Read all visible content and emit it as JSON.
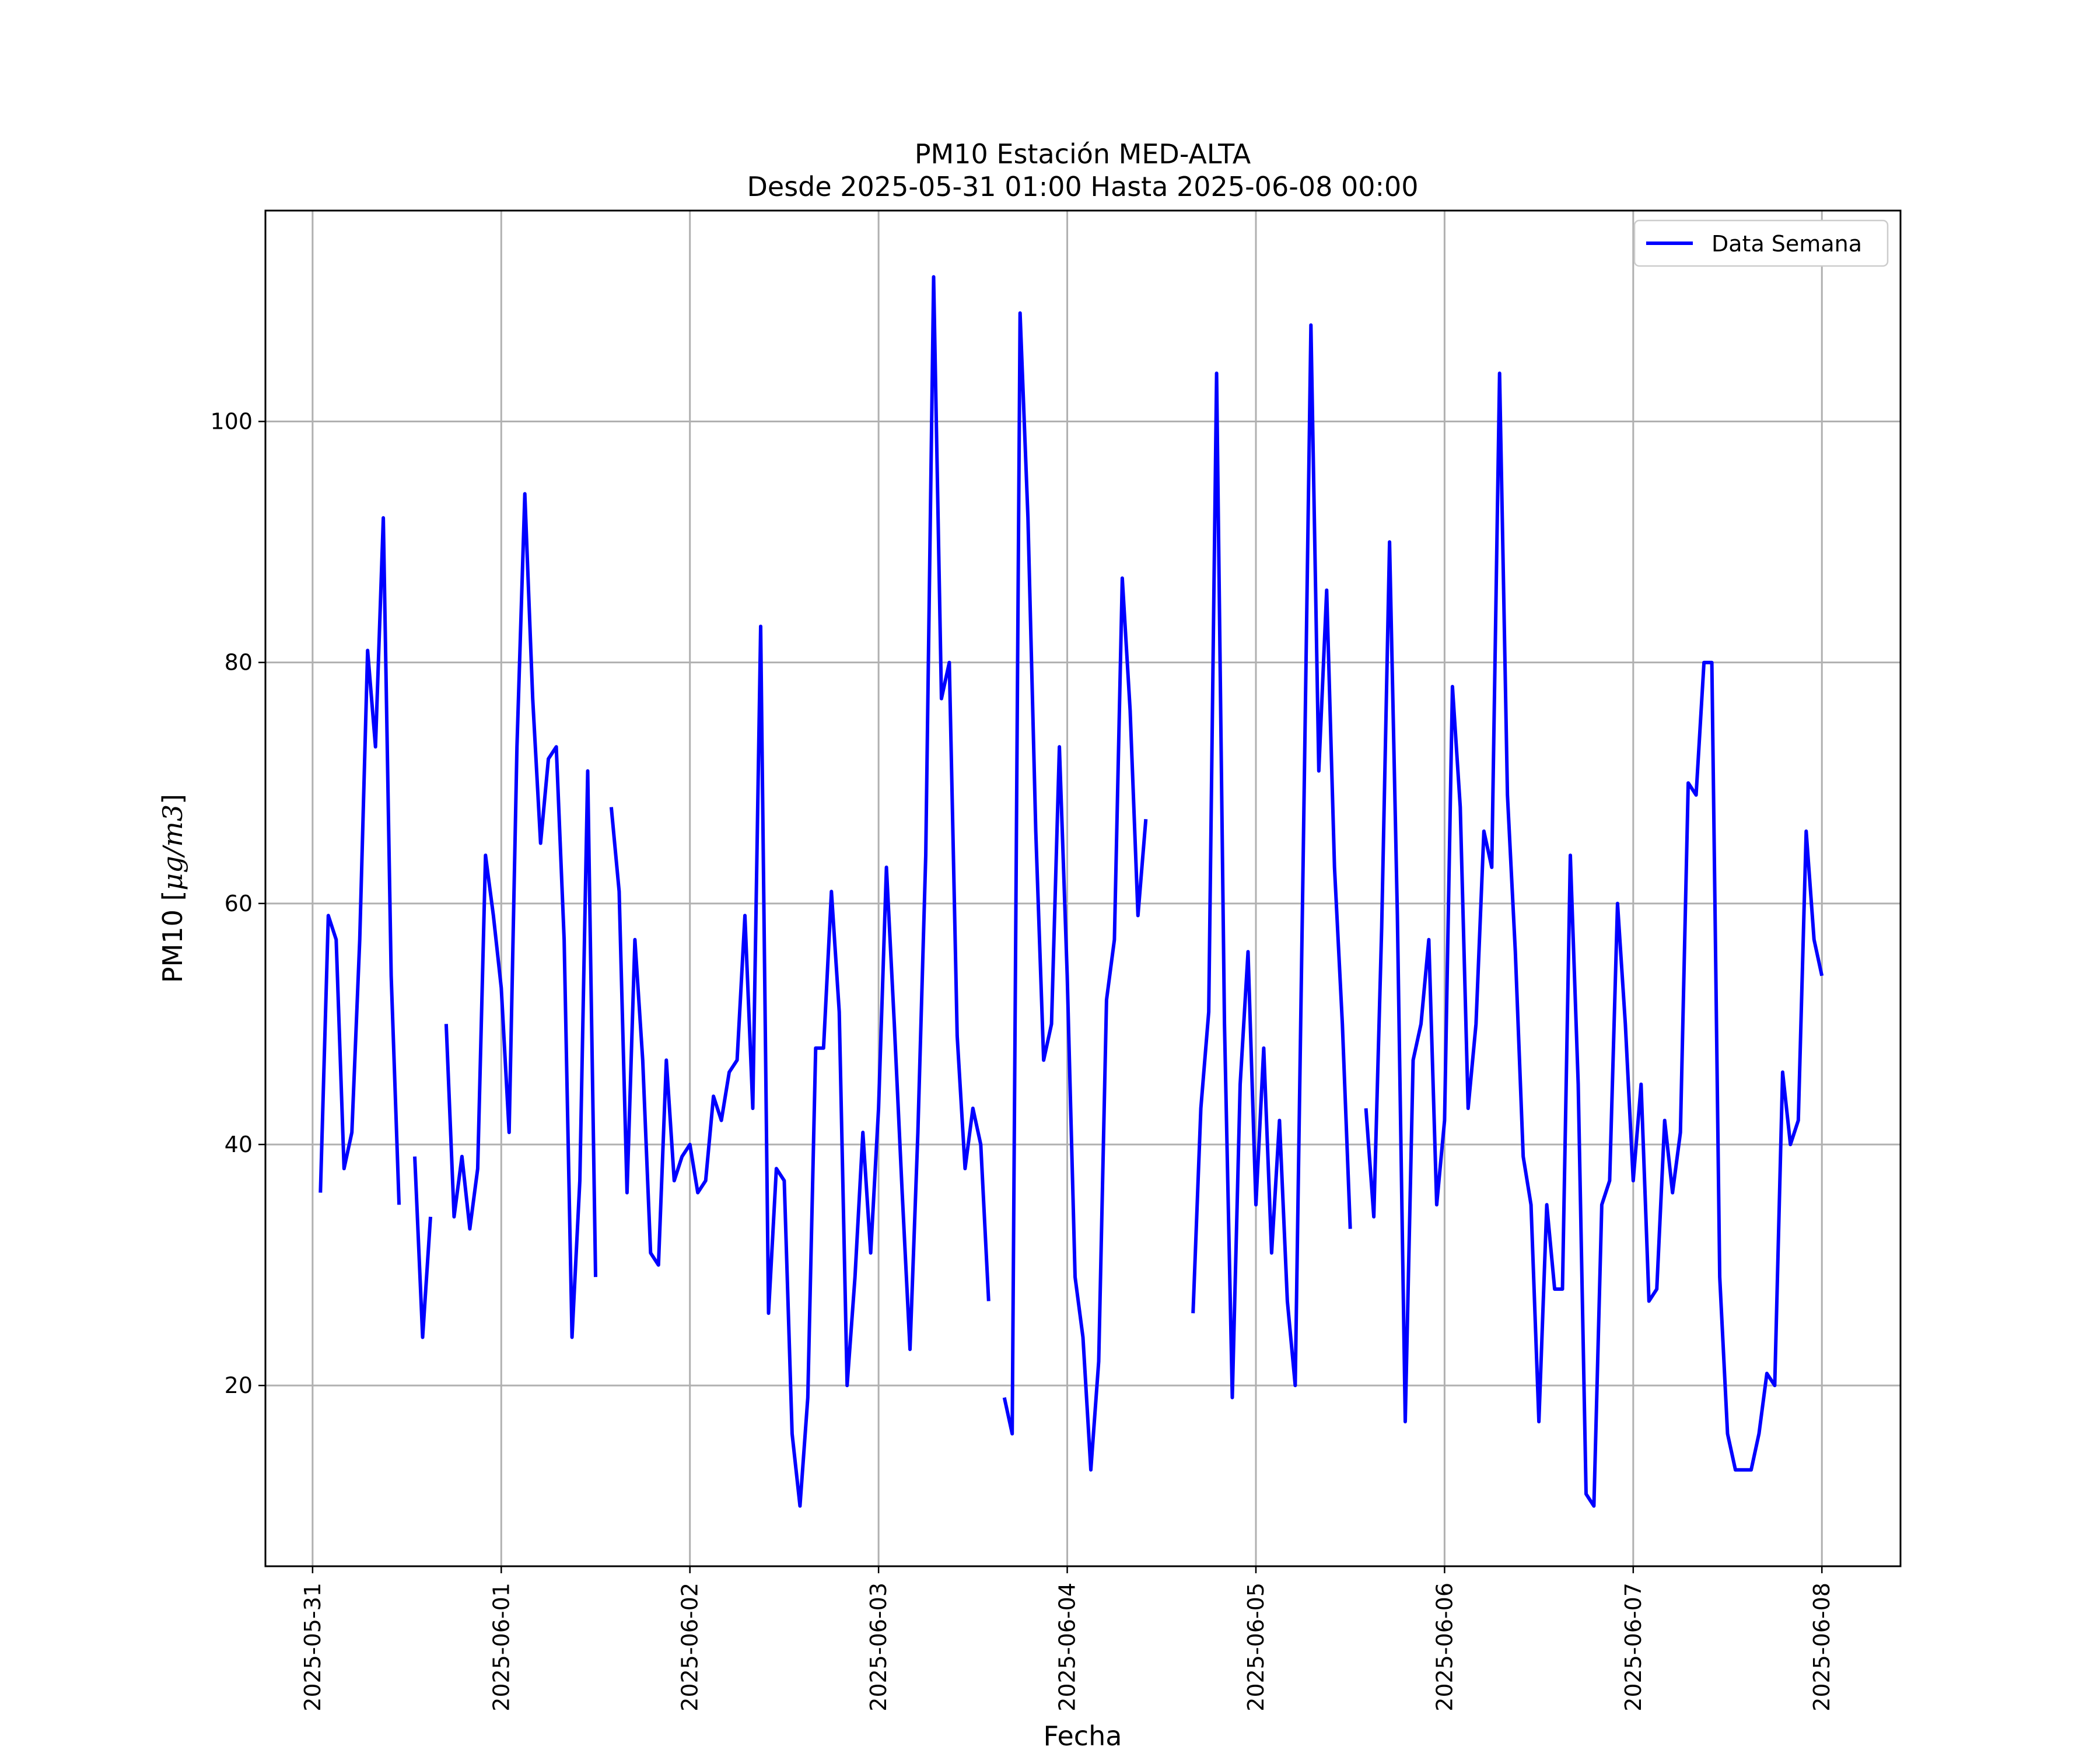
{
  "chart_data": {
    "type": "line",
    "title": "PM10 Estación MED-ALTA",
    "subtitle": "Desde 2025-05-31 01:00 Hasta 2025-06-08 00:00",
    "xlabel": "Fecha",
    "ylabel_prefix": "PM10 [",
    "ylabel_units": "μg/m3",
    "ylabel_suffix": "]",
    "xlim": [
      "2025-05-30 18:00",
      "2025-06-08 10:00"
    ],
    "ylim": [
      5,
      117.5
    ],
    "x_ticks": [
      "2025-05-31",
      "2025-06-01",
      "2025-06-02",
      "2025-06-03",
      "2025-06-04",
      "2025-06-05",
      "2025-06-06",
      "2025-06-07",
      "2025-06-08"
    ],
    "y_ticks": [
      20,
      40,
      60,
      80,
      100
    ],
    "grid": true,
    "legend_position": "top-right",
    "color": "#0000ff",
    "series": [
      {
        "name": "Data Semana",
        "points": [
          [
            "2025-05-31 01:00",
            36
          ],
          [
            "2025-05-31 02:00",
            59
          ],
          [
            "2025-05-31 03:00",
            57
          ],
          [
            "2025-05-31 04:00",
            38
          ],
          [
            "2025-05-31 05:00",
            41
          ],
          [
            "2025-05-31 06:00",
            57
          ],
          [
            "2025-05-31 07:00",
            81
          ],
          [
            "2025-05-31 08:00",
            73
          ],
          [
            "2025-05-31 09:00",
            92
          ],
          [
            "2025-05-31 10:00",
            54
          ],
          [
            "2025-05-31 11:00",
            35
          ],
          [
            "2025-05-31 12:00",
            null
          ],
          [
            "2025-05-31 13:00",
            39
          ],
          [
            "2025-05-31 14:00",
            24
          ],
          [
            "2025-05-31 15:00",
            34
          ],
          [
            "2025-05-31 16:00",
            null
          ],
          [
            "2025-05-31 17:00",
            50
          ],
          [
            "2025-05-31 18:00",
            34
          ],
          [
            "2025-05-31 19:00",
            39
          ],
          [
            "2025-05-31 20:00",
            33
          ],
          [
            "2025-05-31 21:00",
            38
          ],
          [
            "2025-05-31 22:00",
            64
          ],
          [
            "2025-05-31 23:00",
            59
          ],
          [
            "2025-06-01 00:00",
            53
          ],
          [
            "2025-06-01 01:00",
            41
          ],
          [
            "2025-06-01 02:00",
            73
          ],
          [
            "2025-06-01 03:00",
            94
          ],
          [
            "2025-06-01 04:00",
            77
          ],
          [
            "2025-06-01 05:00",
            65
          ],
          [
            "2025-06-01 06:00",
            72
          ],
          [
            "2025-06-01 07:00",
            73
          ],
          [
            "2025-06-01 08:00",
            57
          ],
          [
            "2025-06-01 09:00",
            24
          ],
          [
            "2025-06-01 10:00",
            37
          ],
          [
            "2025-06-01 11:00",
            71
          ],
          [
            "2025-06-01 12:00",
            29
          ],
          [
            "2025-06-01 13:00",
            null
          ],
          [
            "2025-06-01 14:00",
            68
          ],
          [
            "2025-06-01 15:00",
            61
          ],
          [
            "2025-06-01 16:00",
            36
          ],
          [
            "2025-06-01 17:00",
            57
          ],
          [
            "2025-06-01 18:00",
            47
          ],
          [
            "2025-06-01 19:00",
            31
          ],
          [
            "2025-06-01 20:00",
            30
          ],
          [
            "2025-06-01 21:00",
            47
          ],
          [
            "2025-06-01 22:00",
            37
          ],
          [
            "2025-06-01 23:00",
            39
          ],
          [
            "2025-06-02 00:00",
            40
          ],
          [
            "2025-06-02 01:00",
            36
          ],
          [
            "2025-06-02 02:00",
            37
          ],
          [
            "2025-06-02 03:00",
            44
          ],
          [
            "2025-06-02 04:00",
            42
          ],
          [
            "2025-06-02 05:00",
            46
          ],
          [
            "2025-06-02 06:00",
            47
          ],
          [
            "2025-06-02 07:00",
            59
          ],
          [
            "2025-06-02 08:00",
            43
          ],
          [
            "2025-06-02 09:00",
            83
          ],
          [
            "2025-06-02 10:00",
            26
          ],
          [
            "2025-06-02 11:00",
            38
          ],
          [
            "2025-06-02 12:00",
            37
          ],
          [
            "2025-06-02 13:00",
            16
          ],
          [
            "2025-06-02 14:00",
            10
          ],
          [
            "2025-06-02 15:00",
            19
          ],
          [
            "2025-06-02 16:00",
            48
          ],
          [
            "2025-06-02 17:00",
            48
          ],
          [
            "2025-06-02 18:00",
            61
          ],
          [
            "2025-06-02 19:00",
            51
          ],
          [
            "2025-06-02 20:00",
            20
          ],
          [
            "2025-06-02 21:00",
            29
          ],
          [
            "2025-06-02 22:00",
            41
          ],
          [
            "2025-06-02 23:00",
            31
          ],
          [
            "2025-06-03 00:00",
            43
          ],
          [
            "2025-06-03 01:00",
            63
          ],
          [
            "2025-06-03 02:00",
            50
          ],
          [
            "2025-06-03 03:00",
            36
          ],
          [
            "2025-06-03 04:00",
            23
          ],
          [
            "2025-06-03 05:00",
            41
          ],
          [
            "2025-06-03 06:00",
            64
          ],
          [
            "2025-06-03 07:00",
            112
          ],
          [
            "2025-06-03 08:00",
            77
          ],
          [
            "2025-06-03 09:00",
            80
          ],
          [
            "2025-06-03 10:00",
            49
          ],
          [
            "2025-06-03 11:00",
            38
          ],
          [
            "2025-06-03 12:00",
            43
          ],
          [
            "2025-06-03 13:00",
            40
          ],
          [
            "2025-06-03 14:00",
            27
          ],
          [
            "2025-06-03 15:00",
            null
          ],
          [
            "2025-06-03 16:00",
            19
          ],
          [
            "2025-06-03 17:00",
            16
          ],
          [
            "2025-06-03 18:00",
            109
          ],
          [
            "2025-06-03 19:00",
            92
          ],
          [
            "2025-06-03 20:00",
            66
          ],
          [
            "2025-06-03 21:00",
            47
          ],
          [
            "2025-06-03 22:00",
            50
          ],
          [
            "2025-06-03 23:00",
            73
          ],
          [
            "2025-06-04 00:00",
            54
          ],
          [
            "2025-06-04 01:00",
            29
          ],
          [
            "2025-06-04 02:00",
            24
          ],
          [
            "2025-06-04 03:00",
            13
          ],
          [
            "2025-06-04 04:00",
            22
          ],
          [
            "2025-06-04 05:00",
            52
          ],
          [
            "2025-06-04 06:00",
            57
          ],
          [
            "2025-06-04 07:00",
            87
          ],
          [
            "2025-06-04 08:00",
            76
          ],
          [
            "2025-06-04 09:00",
            59
          ],
          [
            "2025-06-04 10:00",
            67
          ],
          [
            "2025-06-04 11:00",
            null
          ],
          [
            "2025-06-04 16:00",
            26
          ],
          [
            "2025-06-04 17:00",
            43
          ],
          [
            "2025-06-04 18:00",
            51
          ],
          [
            "2025-06-04 19:00",
            104
          ],
          [
            "2025-06-04 20:00",
            50
          ],
          [
            "2025-06-04 21:00",
            19
          ],
          [
            "2025-06-04 22:00",
            45
          ],
          [
            "2025-06-04 23:00",
            56
          ],
          [
            "2025-06-05 00:00",
            35
          ],
          [
            "2025-06-05 01:00",
            48
          ],
          [
            "2025-06-05 02:00",
            31
          ],
          [
            "2025-06-05 03:00",
            42
          ],
          [
            "2025-06-05 04:00",
            27
          ],
          [
            "2025-06-05 05:00",
            20
          ],
          [
            "2025-06-05 06:00",
            63
          ],
          [
            "2025-06-05 07:00",
            108
          ],
          [
            "2025-06-05 08:00",
            71
          ],
          [
            "2025-06-05 09:00",
            86
          ],
          [
            "2025-06-05 10:00",
            63
          ],
          [
            "2025-06-05 11:00",
            50
          ],
          [
            "2025-06-05 12:00",
            33
          ],
          [
            "2025-06-05 13:00",
            null
          ],
          [
            "2025-06-05 14:00",
            43
          ],
          [
            "2025-06-05 15:00",
            34
          ],
          [
            "2025-06-05 16:00",
            58
          ],
          [
            "2025-06-05 17:00",
            90
          ],
          [
            "2025-06-05 18:00",
            59
          ],
          [
            "2025-06-05 19:00",
            17
          ],
          [
            "2025-06-05 20:00",
            47
          ],
          [
            "2025-06-05 21:00",
            50
          ],
          [
            "2025-06-05 22:00",
            57
          ],
          [
            "2025-06-05 23:00",
            35
          ],
          [
            "2025-06-06 00:00",
            42
          ],
          [
            "2025-06-06 01:00",
            78
          ],
          [
            "2025-06-06 02:00",
            68
          ],
          [
            "2025-06-06 03:00",
            43
          ],
          [
            "2025-06-06 04:00",
            50
          ],
          [
            "2025-06-06 05:00",
            66
          ],
          [
            "2025-06-06 06:00",
            63
          ],
          [
            "2025-06-06 07:00",
            104
          ],
          [
            "2025-06-06 08:00",
            69
          ],
          [
            "2025-06-06 09:00",
            56
          ],
          [
            "2025-06-06 10:00",
            39
          ],
          [
            "2025-06-06 11:00",
            35
          ],
          [
            "2025-06-06 12:00",
            17
          ],
          [
            "2025-06-06 13:00",
            35
          ],
          [
            "2025-06-06 14:00",
            28
          ],
          [
            "2025-06-06 15:00",
            28
          ],
          [
            "2025-06-06 16:00",
            64
          ],
          [
            "2025-06-06 17:00",
            45
          ],
          [
            "2025-06-06 18:00",
            11
          ],
          [
            "2025-06-06 19:00",
            10
          ],
          [
            "2025-06-06 20:00",
            35
          ],
          [
            "2025-06-06 21:00",
            37
          ],
          [
            "2025-06-06 22:00",
            60
          ],
          [
            "2025-06-06 23:00",
            50
          ],
          [
            "2025-06-07 00:00",
            37
          ],
          [
            "2025-06-07 01:00",
            45
          ],
          [
            "2025-06-07 02:00",
            27
          ],
          [
            "2025-06-07 03:00",
            28
          ],
          [
            "2025-06-07 04:00",
            42
          ],
          [
            "2025-06-07 05:00",
            36
          ],
          [
            "2025-06-07 06:00",
            41
          ],
          [
            "2025-06-07 07:00",
            70
          ],
          [
            "2025-06-07 08:00",
            69
          ],
          [
            "2025-06-07 09:00",
            80
          ],
          [
            "2025-06-07 10:00",
            80
          ],
          [
            "2025-06-07 11:00",
            29
          ],
          [
            "2025-06-07 12:00",
            16
          ],
          [
            "2025-06-07 13:00",
            13
          ],
          [
            "2025-06-07 14:00",
            13
          ],
          [
            "2025-06-07 15:00",
            13
          ],
          [
            "2025-06-07 16:00",
            16
          ],
          [
            "2025-06-07 17:00",
            21
          ],
          [
            "2025-06-07 18:00",
            20
          ],
          [
            "2025-06-07 19:00",
            46
          ],
          [
            "2025-06-07 20:00",
            40
          ],
          [
            "2025-06-07 21:00",
            42
          ],
          [
            "2025-06-07 22:00",
            66
          ],
          [
            "2025-06-07 23:00",
            57
          ],
          [
            "2025-06-08 00:00",
            54
          ]
        ]
      }
    ]
  }
}
